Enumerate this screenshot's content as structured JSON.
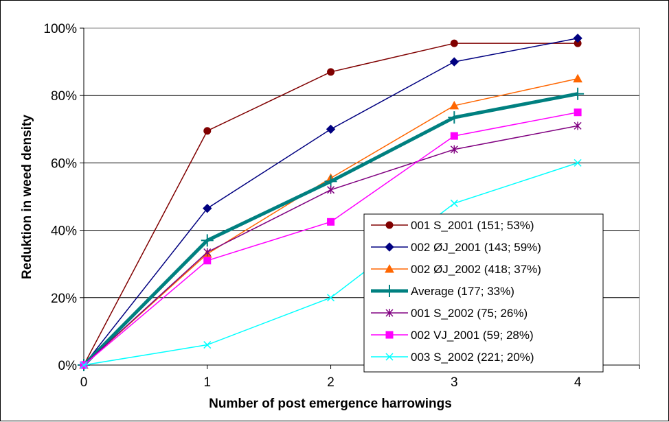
{
  "chart_data": {
    "type": "line",
    "title": "",
    "xlabel": "Number of post emergence harrowings",
    "ylabel": "Reduktion in weed density",
    "x": [
      0,
      1,
      2,
      3,
      4
    ],
    "x_tick_labels": [
      "0",
      "1",
      "2",
      "3",
      "4"
    ],
    "xlim": [
      0,
      4.5
    ],
    "ylim": [
      0,
      100
    ],
    "y_tick_labels": [
      "0%",
      "20%",
      "40%",
      "60%",
      "80%",
      "100%"
    ],
    "y_ticks": [
      0,
      20,
      40,
      60,
      80,
      100
    ],
    "grid": "horizontal",
    "legend_position": "bottom-right",
    "series": [
      {
        "name": "001 S_2001 (151; 53%)",
        "values": [
          0,
          69.5,
          87,
          95.5,
          95.5
        ],
        "color": "#800000",
        "marker": "circle",
        "bold": false
      },
      {
        "name": "002 ØJ_2001 (143; 59%)",
        "values": [
          0,
          46.5,
          70,
          90,
          97
        ],
        "color": "#000080",
        "marker": "diamond",
        "bold": false
      },
      {
        "name": "002 ØJ_2002 (418; 37%)",
        "values": [
          0,
          33,
          55.5,
          77,
          85
        ],
        "color": "#FF6600",
        "marker": "triangle",
        "bold": false
      },
      {
        "name": "Average (177; 33%)",
        "values": [
          0,
          37,
          54.5,
          73.5,
          80.5
        ],
        "color": "#008080",
        "marker": "plus",
        "bold": true
      },
      {
        "name": "001 S_2002 (75; 26%)",
        "values": [
          0,
          33.5,
          52,
          64,
          71
        ],
        "color": "#800080",
        "marker": "star",
        "bold": false
      },
      {
        "name": "002 VJ_2001 (59; 28%)",
        "values": [
          0,
          31,
          42.5,
          68,
          75
        ],
        "color": "#FF00FF",
        "marker": "square",
        "bold": false
      },
      {
        "name": "003 S_2002 (221; 20%)",
        "values": [
          0,
          6,
          20,
          48,
          60
        ],
        "color": "#00FFFF",
        "marker": "x",
        "bold": false
      }
    ]
  }
}
